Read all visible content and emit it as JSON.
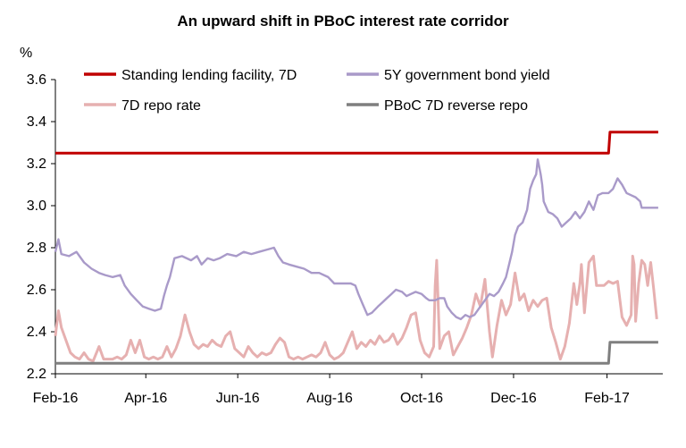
{
  "chart_data": {
    "type": "line",
    "title": "An upward shift in PBoC interest rate corridor",
    "ylabel": "%",
    "ylim": [
      2.2,
      3.6
    ],
    "yticks": [
      "2.2",
      "2.4",
      "2.6",
      "2.8",
      "3.0",
      "3.2",
      "3.4",
      "3.6"
    ],
    "xlim": [
      "2016-02-01",
      "2017-03-10"
    ],
    "xticks": [
      {
        "date": "2016-02-01",
        "label": "Feb-16"
      },
      {
        "date": "2016-04-01",
        "label": "Apr-16"
      },
      {
        "date": "2016-06-01",
        "label": "Jun-16"
      },
      {
        "date": "2016-08-01",
        "label": "Aug-16"
      },
      {
        "date": "2016-10-01",
        "label": "Oct-16"
      },
      {
        "date": "2016-12-01",
        "label": "Dec-16"
      },
      {
        "date": "2017-02-01",
        "label": "Feb-17"
      }
    ],
    "grid": false,
    "legend_position": "top-left",
    "series": [
      {
        "name": "Standing lending facility, 7D",
        "color": "#c00000",
        "points": [
          [
            "2016-02-01",
            3.25
          ],
          [
            "2017-02-02",
            3.25
          ],
          [
            "2017-02-03",
            3.35
          ],
          [
            "2017-03-07",
            3.35
          ]
        ]
      },
      {
        "name": "5Y government bond yield",
        "color": "#a99ac9",
        "points": [
          [
            "2016-02-01",
            2.78
          ],
          [
            "2016-02-03",
            2.84
          ],
          [
            "2016-02-05",
            2.77
          ],
          [
            "2016-02-10",
            2.76
          ],
          [
            "2016-02-15",
            2.78
          ],
          [
            "2016-02-20",
            2.73
          ],
          [
            "2016-02-25",
            2.7
          ],
          [
            "2016-03-01",
            2.68
          ],
          [
            "2016-03-05",
            2.67
          ],
          [
            "2016-03-10",
            2.66
          ],
          [
            "2016-03-15",
            2.67
          ],
          [
            "2016-03-18",
            2.62
          ],
          [
            "2016-03-22",
            2.58
          ],
          [
            "2016-03-26",
            2.55
          ],
          [
            "2016-03-30",
            2.52
          ],
          [
            "2016-04-03",
            2.51
          ],
          [
            "2016-04-07",
            2.5
          ],
          [
            "2016-04-11",
            2.51
          ],
          [
            "2016-04-13",
            2.57
          ],
          [
            "2016-04-15",
            2.62
          ],
          [
            "2016-04-17",
            2.66
          ],
          [
            "2016-04-20",
            2.75
          ],
          [
            "2016-04-25",
            2.76
          ],
          [
            "2016-05-01",
            2.74
          ],
          [
            "2016-05-05",
            2.76
          ],
          [
            "2016-05-08",
            2.72
          ],
          [
            "2016-05-12",
            2.75
          ],
          [
            "2016-05-16",
            2.74
          ],
          [
            "2016-05-20",
            2.75
          ],
          [
            "2016-05-25",
            2.77
          ],
          [
            "2016-05-31",
            2.76
          ],
          [
            "2016-06-05",
            2.78
          ],
          [
            "2016-06-10",
            2.77
          ],
          [
            "2016-06-15",
            2.78
          ],
          [
            "2016-06-20",
            2.79
          ],
          [
            "2016-06-25",
            2.8
          ],
          [
            "2016-06-28",
            2.76
          ],
          [
            "2016-07-01",
            2.73
          ],
          [
            "2016-07-05",
            2.72
          ],
          [
            "2016-07-10",
            2.71
          ],
          [
            "2016-07-15",
            2.7
          ],
          [
            "2016-07-20",
            2.68
          ],
          [
            "2016-07-25",
            2.68
          ],
          [
            "2016-07-31",
            2.66
          ],
          [
            "2016-08-04",
            2.63
          ],
          [
            "2016-08-10",
            2.63
          ],
          [
            "2016-08-15",
            2.63
          ],
          [
            "2016-08-18",
            2.62
          ],
          [
            "2016-08-20",
            2.58
          ],
          [
            "2016-08-23",
            2.53
          ],
          [
            "2016-08-26",
            2.48
          ],
          [
            "2016-08-29",
            2.49
          ],
          [
            "2016-09-02",
            2.52
          ],
          [
            "2016-09-05",
            2.54
          ],
          [
            "2016-09-08",
            2.56
          ],
          [
            "2016-09-11",
            2.58
          ],
          [
            "2016-09-14",
            2.6
          ],
          [
            "2016-09-18",
            2.59
          ],
          [
            "2016-09-21",
            2.57
          ],
          [
            "2016-09-24",
            2.58
          ],
          [
            "2016-09-27",
            2.59
          ],
          [
            "2016-10-01",
            2.58
          ],
          [
            "2016-10-04",
            2.56
          ],
          [
            "2016-10-06",
            2.55
          ],
          [
            "2016-10-10",
            2.55
          ],
          [
            "2016-10-13",
            2.56
          ],
          [
            "2016-10-16",
            2.56
          ],
          [
            "2016-10-18",
            2.52
          ],
          [
            "2016-10-21",
            2.49
          ],
          [
            "2016-10-24",
            2.47
          ],
          [
            "2016-10-27",
            2.46
          ],
          [
            "2016-10-30",
            2.48
          ],
          [
            "2016-11-02",
            2.47
          ],
          [
            "2016-11-05",
            2.48
          ],
          [
            "2016-11-09",
            2.52
          ],
          [
            "2016-11-12",
            2.55
          ],
          [
            "2016-11-15",
            2.58
          ],
          [
            "2016-11-18",
            2.57
          ],
          [
            "2016-11-21",
            2.59
          ],
          [
            "2016-11-24",
            2.63
          ],
          [
            "2016-11-26",
            2.66
          ],
          [
            "2016-11-28",
            2.72
          ],
          [
            "2016-11-30",
            2.78
          ],
          [
            "2016-12-02",
            2.86
          ],
          [
            "2016-12-04",
            2.9
          ],
          [
            "2016-12-07",
            2.92
          ],
          [
            "2016-12-10",
            2.98
          ],
          [
            "2016-12-12",
            3.08
          ],
          [
            "2016-12-14",
            3.12
          ],
          [
            "2016-12-16",
            3.15
          ],
          [
            "2016-12-17",
            3.22
          ],
          [
            "2016-12-19",
            3.15
          ],
          [
            "2016-12-20",
            3.1
          ],
          [
            "2016-12-21",
            3.02
          ],
          [
            "2016-12-24",
            2.97
          ],
          [
            "2016-12-27",
            2.96
          ],
          [
            "2016-12-30",
            2.94
          ],
          [
            "2017-01-02",
            2.9
          ],
          [
            "2017-01-05",
            2.92
          ],
          [
            "2017-01-08",
            2.94
          ],
          [
            "2017-01-11",
            2.97
          ],
          [
            "2017-01-14",
            2.94
          ],
          [
            "2017-01-17",
            2.97
          ],
          [
            "2017-01-20",
            3.02
          ],
          [
            "2017-01-23",
            2.98
          ],
          [
            "2017-01-26",
            3.05
          ],
          [
            "2017-01-29",
            3.06
          ],
          [
            "2017-02-02",
            3.06
          ],
          [
            "2017-02-05",
            3.08
          ],
          [
            "2017-02-08",
            3.13
          ],
          [
            "2017-02-11",
            3.1
          ],
          [
            "2017-02-14",
            3.06
          ],
          [
            "2017-02-17",
            3.05
          ],
          [
            "2017-02-20",
            3.04
          ],
          [
            "2017-02-23",
            3.02
          ],
          [
            "2017-02-24",
            2.99
          ],
          [
            "2017-03-07",
            2.99
          ]
        ]
      },
      {
        "name": "7D repo rate",
        "color": "#e6b0b0",
        "points": [
          [
            "2016-02-01",
            2.38
          ],
          [
            "2016-02-03",
            2.5
          ],
          [
            "2016-02-05",
            2.42
          ],
          [
            "2016-02-08",
            2.36
          ],
          [
            "2016-02-11",
            2.3
          ],
          [
            "2016-02-14",
            2.28
          ],
          [
            "2016-02-17",
            2.27
          ],
          [
            "2016-02-20",
            2.3
          ],
          [
            "2016-02-23",
            2.27
          ],
          [
            "2016-02-26",
            2.26
          ],
          [
            "2016-03-01",
            2.33
          ],
          [
            "2016-03-04",
            2.27
          ],
          [
            "2016-03-07",
            2.27
          ],
          [
            "2016-03-10",
            2.27
          ],
          [
            "2016-03-13",
            2.28
          ],
          [
            "2016-03-16",
            2.27
          ],
          [
            "2016-03-19",
            2.29
          ],
          [
            "2016-03-22",
            2.36
          ],
          [
            "2016-03-25",
            2.3
          ],
          [
            "2016-03-28",
            2.36
          ],
          [
            "2016-03-31",
            2.28
          ],
          [
            "2016-04-03",
            2.27
          ],
          [
            "2016-04-06",
            2.28
          ],
          [
            "2016-04-09",
            2.27
          ],
          [
            "2016-04-12",
            2.28
          ],
          [
            "2016-04-15",
            2.33
          ],
          [
            "2016-04-18",
            2.28
          ],
          [
            "2016-04-21",
            2.32
          ],
          [
            "2016-04-24",
            2.38
          ],
          [
            "2016-04-27",
            2.48
          ],
          [
            "2016-04-30",
            2.4
          ],
          [
            "2016-05-03",
            2.34
          ],
          [
            "2016-05-06",
            2.32
          ],
          [
            "2016-05-09",
            2.34
          ],
          [
            "2016-05-12",
            2.33
          ],
          [
            "2016-05-15",
            2.36
          ],
          [
            "2016-05-18",
            2.34
          ],
          [
            "2016-05-21",
            2.33
          ],
          [
            "2016-05-24",
            2.38
          ],
          [
            "2016-05-27",
            2.4
          ],
          [
            "2016-05-30",
            2.32
          ],
          [
            "2016-06-02",
            2.3
          ],
          [
            "2016-06-05",
            2.28
          ],
          [
            "2016-06-08",
            2.33
          ],
          [
            "2016-06-11",
            2.3
          ],
          [
            "2016-06-14",
            2.28
          ],
          [
            "2016-06-17",
            2.3
          ],
          [
            "2016-06-20",
            2.29
          ],
          [
            "2016-06-23",
            2.3
          ],
          [
            "2016-06-26",
            2.34
          ],
          [
            "2016-06-29",
            2.37
          ],
          [
            "2016-07-02",
            2.35
          ],
          [
            "2016-07-05",
            2.28
          ],
          [
            "2016-07-08",
            2.27
          ],
          [
            "2016-07-11",
            2.28
          ],
          [
            "2016-07-14",
            2.27
          ],
          [
            "2016-07-17",
            2.28
          ],
          [
            "2016-07-20",
            2.29
          ],
          [
            "2016-07-23",
            2.28
          ],
          [
            "2016-07-26",
            2.3
          ],
          [
            "2016-07-29",
            2.35
          ],
          [
            "2016-08-01",
            2.29
          ],
          [
            "2016-08-04",
            2.27
          ],
          [
            "2016-08-07",
            2.28
          ],
          [
            "2016-08-10",
            2.3
          ],
          [
            "2016-08-13",
            2.35
          ],
          [
            "2016-08-16",
            2.4
          ],
          [
            "2016-08-19",
            2.32
          ],
          [
            "2016-08-22",
            2.35
          ],
          [
            "2016-08-25",
            2.33
          ],
          [
            "2016-08-28",
            2.36
          ],
          [
            "2016-08-31",
            2.34
          ],
          [
            "2016-09-03",
            2.38
          ],
          [
            "2016-09-06",
            2.35
          ],
          [
            "2016-09-09",
            2.36
          ],
          [
            "2016-09-12",
            2.39
          ],
          [
            "2016-09-15",
            2.34
          ],
          [
            "2016-09-18",
            2.37
          ],
          [
            "2016-09-21",
            2.42
          ],
          [
            "2016-09-24",
            2.48
          ],
          [
            "2016-09-27",
            2.49
          ],
          [
            "2016-09-30",
            2.36
          ],
          [
            "2016-10-03",
            2.3
          ],
          [
            "2016-10-06",
            2.28
          ],
          [
            "2016-10-09",
            2.33
          ],
          [
            "2016-10-10",
            2.62
          ],
          [
            "2016-10-11",
            2.74
          ],
          [
            "2016-10-13",
            2.32
          ],
          [
            "2016-10-16",
            2.38
          ],
          [
            "2016-10-19",
            2.4
          ],
          [
            "2016-10-22",
            2.29
          ],
          [
            "2016-10-25",
            2.33
          ],
          [
            "2016-10-28",
            2.37
          ],
          [
            "2016-10-31",
            2.42
          ],
          [
            "2016-11-03",
            2.48
          ],
          [
            "2016-11-06",
            2.58
          ],
          [
            "2016-11-09",
            2.52
          ],
          [
            "2016-11-12",
            2.65
          ],
          [
            "2016-11-15",
            2.4
          ],
          [
            "2016-11-17",
            2.28
          ],
          [
            "2016-11-20",
            2.43
          ],
          [
            "2016-11-23",
            2.55
          ],
          [
            "2016-11-26",
            2.48
          ],
          [
            "2016-11-29",
            2.53
          ],
          [
            "2016-12-02",
            2.68
          ],
          [
            "2016-12-05",
            2.55
          ],
          [
            "2016-12-08",
            2.58
          ],
          [
            "2016-12-11",
            2.5
          ],
          [
            "2016-12-14",
            2.55
          ],
          [
            "2016-12-17",
            2.52
          ],
          [
            "2016-12-20",
            2.55
          ],
          [
            "2016-12-23",
            2.56
          ],
          [
            "2016-12-26",
            2.42
          ],
          [
            "2016-12-29",
            2.35
          ],
          [
            "2017-01-01",
            2.27
          ],
          [
            "2017-01-04",
            2.33
          ],
          [
            "2017-01-07",
            2.44
          ],
          [
            "2017-01-10",
            2.63
          ],
          [
            "2017-01-12",
            2.53
          ],
          [
            "2017-01-14",
            2.63
          ],
          [
            "2017-01-15",
            2.72
          ],
          [
            "2017-01-17",
            2.49
          ],
          [
            "2017-01-20",
            2.73
          ],
          [
            "2017-01-23",
            2.76
          ],
          [
            "2017-01-25",
            2.62
          ],
          [
            "2017-01-27",
            2.62
          ],
          [
            "2017-01-30",
            2.62
          ],
          [
            "2017-02-02",
            2.64
          ],
          [
            "2017-02-05",
            2.63
          ],
          [
            "2017-02-08",
            2.64
          ],
          [
            "2017-02-11",
            2.47
          ],
          [
            "2017-02-14",
            2.43
          ],
          [
            "2017-02-17",
            2.48
          ],
          [
            "2017-02-18",
            2.76
          ],
          [
            "2017-02-19",
            2.72
          ],
          [
            "2017-02-20",
            2.45
          ],
          [
            "2017-02-22",
            2.63
          ],
          [
            "2017-02-24",
            2.74
          ],
          [
            "2017-02-26",
            2.72
          ],
          [
            "2017-02-28",
            2.62
          ],
          [
            "2017-03-02",
            2.73
          ],
          [
            "2017-03-04",
            2.6
          ],
          [
            "2017-03-06",
            2.46
          ]
        ]
      },
      {
        "name": "PBoC 7D reverse repo",
        "color": "#7f7f7f",
        "points": [
          [
            "2016-02-01",
            2.25
          ],
          [
            "2017-02-02",
            2.25
          ],
          [
            "2017-02-03",
            2.35
          ],
          [
            "2017-03-07",
            2.35
          ]
        ]
      }
    ]
  }
}
